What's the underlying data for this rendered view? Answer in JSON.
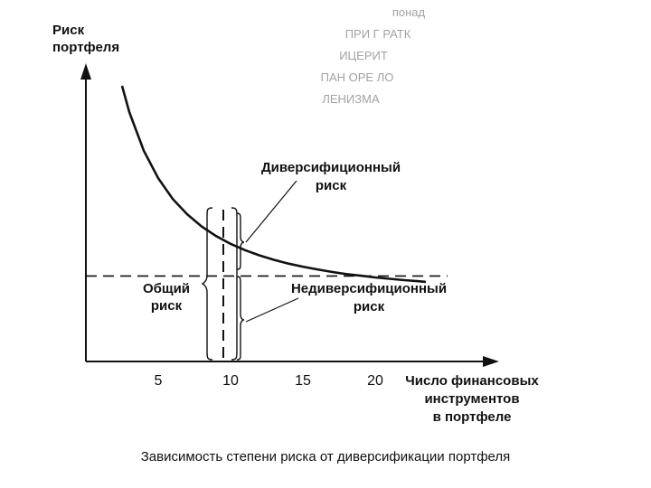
{
  "chart_data": {
    "type": "line",
    "ylabel": [
      "Риск",
      "портфеля"
    ],
    "xlabel": [
      "Число финансовых",
      "инструментов",
      "в портфеле"
    ],
    "xticks": [
      "5",
      "10",
      "15",
      "20"
    ],
    "xlim": [
      0,
      27.5
    ],
    "ylim": [
      0,
      1
    ],
    "series": [
      {
        "x": [
          2.5,
          3,
          4,
          5,
          6,
          7,
          8,
          9,
          10,
          11,
          12,
          13,
          14,
          15,
          16,
          17,
          18,
          19,
          20,
          21,
          22,
          23,
          23.5
        ],
        "y": [
          1.0,
          0.905,
          0.765,
          0.665,
          0.59,
          0.534,
          0.49,
          0.455,
          0.427,
          0.404,
          0.385,
          0.369,
          0.355,
          0.344,
          0.334,
          0.325,
          0.317,
          0.311,
          0.305,
          0.3,
          0.295,
          0.291,
          0.289
        ]
      }
    ],
    "baseline_y": 0.31,
    "vertical_line_x": 9.5,
    "annotations": {
      "diversifiable": [
        "Диверсифиционный",
        "риск"
      ],
      "total": [
        "Общий",
        "риск"
      ],
      "nondiversifiable": [
        "Недиверсифиционный",
        "риск"
      ]
    },
    "faded_text": [
      "понад",
      "ПРИ Г РАТК",
      "ИЦЕРИТ",
      "ПАН ОРЕ ЛО",
      "ЛЕНИЗМА"
    ]
  },
  "caption": "Зависимость степени риска от диверсификации портфеля"
}
